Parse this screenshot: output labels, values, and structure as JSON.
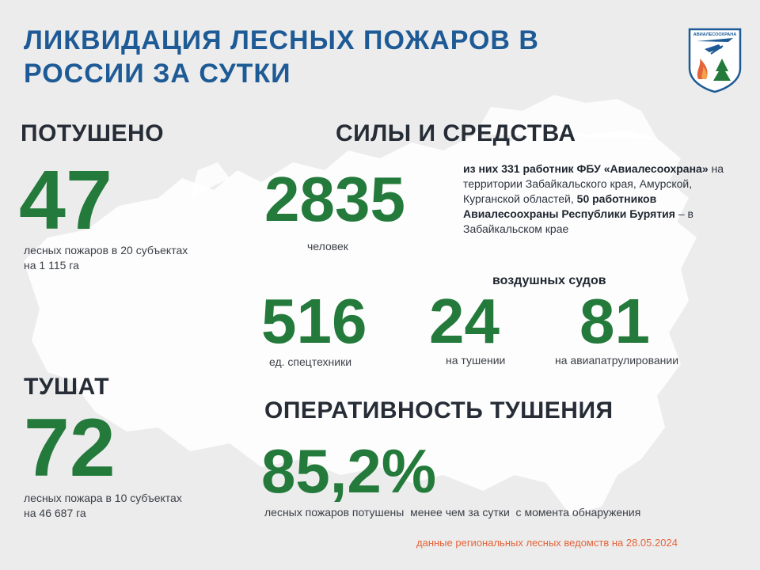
{
  "header": {
    "title": "ЛИКВИДАЦИЯ ЛЕСНЫХ ПОЖАРОВ В РОССИИ ЗА СУТКИ",
    "logo_text": "АВИАЛЕСООХРАНА"
  },
  "extinguished": {
    "heading": "ПОТУШЕНО",
    "value": "47",
    "caption_line1": "лесных пожаров в 20 субъектах",
    "caption_line2": "на 1 115 га"
  },
  "active": {
    "heading": "ТУШАТ",
    "value": "72",
    "caption_line1": "лесных пожара в 10 субъектах",
    "caption_line2": "на 46 687 га"
  },
  "forces": {
    "heading": "СИЛЫ И СРЕДСТВА",
    "people_value": "2835",
    "people_caption": "человек",
    "note": {
      "part1": "из них 331 работник ФБУ «Авиалесоохрана»",
      "part2": " на территории Забайкальского края, Амурской, Курганской областей, ",
      "part3": "50 работников Авиалесоохраны Республики Бурятия",
      "part4": " – в Забайкальском крае"
    },
    "aircraft_label": "воздушных судов",
    "equipment_value": "516",
    "equipment_caption": "ед. спецтехники",
    "aircraft_firefighting_value": "24",
    "aircraft_firefighting_caption": "на тушении",
    "aircraft_patrol_value": "81",
    "aircraft_patrol_caption": "на авиапатрулировании"
  },
  "efficiency": {
    "heading": "ОПЕРАТИВНОСТЬ ТУШЕНИЯ",
    "value": "85,2%",
    "caption": "лесных пожаров потушены  менее чем за сутки  с момента обнаружения"
  },
  "footer": {
    "source": "данные региональных лесных ведомств на 28.05.2024"
  },
  "colors": {
    "background": "#ececec",
    "title": "#1e5b96",
    "number_green": "#237a3b",
    "footer_orange": "#e4643a",
    "map": "#ffffff"
  }
}
